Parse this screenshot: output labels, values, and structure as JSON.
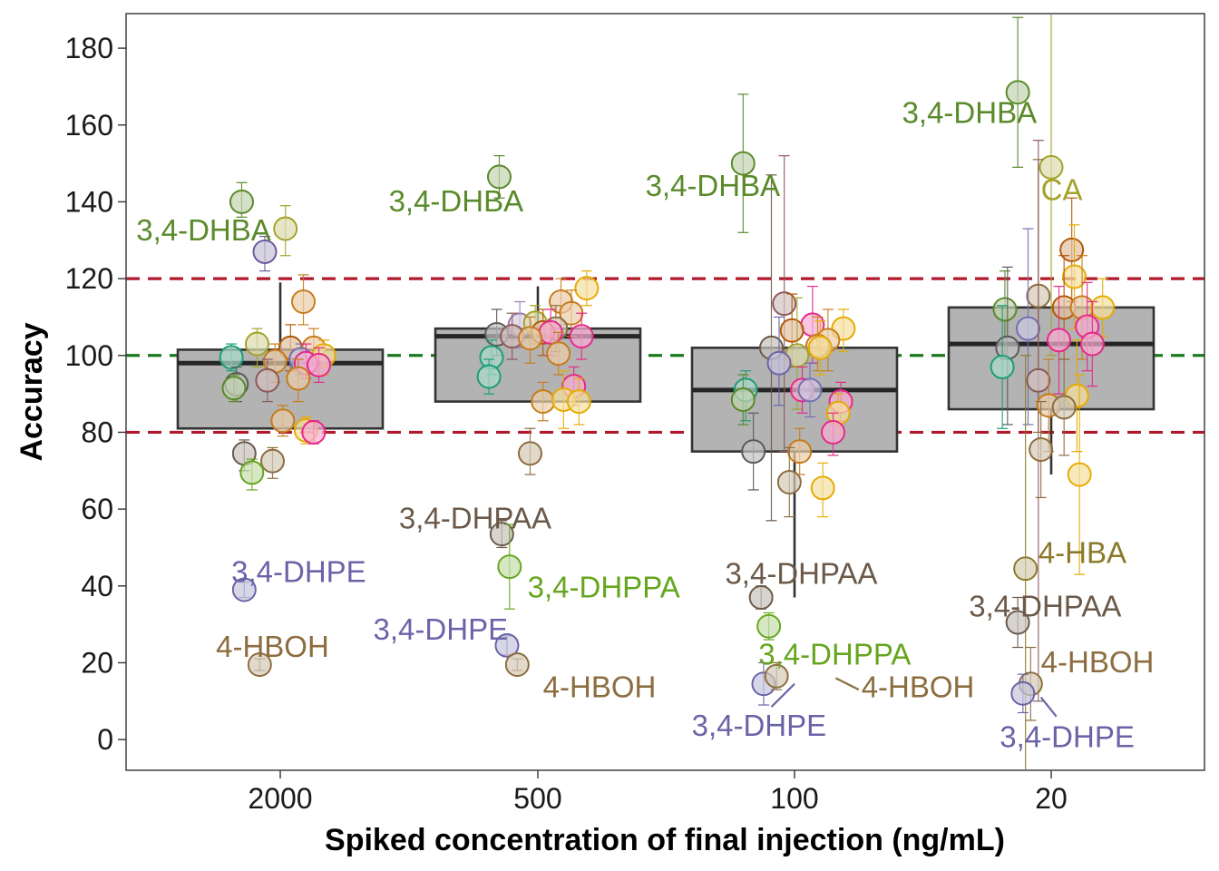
{
  "chart_data": {
    "type": "box",
    "xlabel": "Spiked concentration of final injection (ng/mL)",
    "ylabel": "Accuracy",
    "categories": [
      "2000",
      "500",
      "100",
      "20"
    ],
    "ylim": [
      -8,
      189
    ],
    "yticks": [
      0,
      20,
      40,
      60,
      80,
      100,
      120,
      140,
      160,
      180
    ],
    "reference_lines": [
      {
        "y": 120,
        "color": "#b2182b",
        "style": "dashed"
      },
      {
        "y": 100,
        "color": "#1b7a1b",
        "style": "dashed"
      },
      {
        "y": 80,
        "color": "#b2182b",
        "style": "dashed"
      }
    ],
    "boxes": [
      {
        "category": "2000",
        "whisker_low": 81,
        "q1": 81,
        "median": 98,
        "q3": 101.5,
        "whisker_high": 119
      },
      {
        "category": "500",
        "whisker_low": 88,
        "q1": 88,
        "median": 105,
        "q3": 107,
        "whisker_high": 118
      },
      {
        "category": "100",
        "whisker_low": 37,
        "q1": 75,
        "median": 91,
        "q3": 102,
        "whisker_high": 102
      },
      {
        "category": "20",
        "whisker_low": 69,
        "q1": 86,
        "median": 103,
        "q3": 112.5,
        "whisker_high": 112.5
      }
    ],
    "points": [
      {
        "c": 0,
        "dx": -0.15,
        "y": 140,
        "lo": 136,
        "hi": 145,
        "col": "#5a8a2a"
      },
      {
        "c": 0,
        "dx": 0.02,
        "y": 133,
        "lo": 126,
        "hi": 139,
        "col": "#a3a32a"
      },
      {
        "c": 0,
        "dx": -0.06,
        "y": 127,
        "lo": 122,
        "hi": 131,
        "col": "#6b5a9c"
      },
      {
        "c": 0,
        "dx": 0.09,
        "y": 114,
        "lo": 108,
        "hi": 121,
        "col": "#c77c1a"
      },
      {
        "c": 0,
        "dx": -0.19,
        "y": 99.5,
        "lo": 96,
        "hi": 103,
        "col": "#1b9e77"
      },
      {
        "c": 0,
        "dx": -0.09,
        "y": 103,
        "lo": 97,
        "hi": 107,
        "col": "#a3a32a"
      },
      {
        "c": 0,
        "dx": 0.04,
        "y": 102,
        "lo": 96,
        "hi": 108,
        "col": "#b35806"
      },
      {
        "c": 0,
        "dx": 0.13,
        "y": 102,
        "lo": 96,
        "hi": 107,
        "col": "#c77c1a"
      },
      {
        "c": 0,
        "dx": 0.17,
        "y": 100,
        "lo": 95,
        "hi": 104,
        "col": "#e6ab02"
      },
      {
        "c": 0,
        "dx": 0.08,
        "y": 99,
        "lo": 95,
        "hi": 103,
        "col": "#7570b3"
      },
      {
        "c": 0,
        "dx": -0.02,
        "y": 98.5,
        "lo": 93,
        "hi": 103,
        "col": "#c77c1a"
      },
      {
        "c": 0,
        "dx": 0.1,
        "y": 98,
        "lo": 94,
        "hi": 103,
        "col": "#e7298a"
      },
      {
        "c": 0,
        "dx": 0.15,
        "y": 97.5,
        "lo": 93,
        "hi": 102,
        "col": "#e7298a"
      },
      {
        "c": 0,
        "dx": -0.05,
        "y": 93.5,
        "lo": 88,
        "hi": 99,
        "col": "#8c5a5a"
      },
      {
        "c": 0,
        "dx": -0.17,
        "y": 92.5,
        "lo": 88,
        "hi": 97,
        "col": "#5a5a5a"
      },
      {
        "c": 0,
        "dx": -0.18,
        "y": 91.5,
        "lo": 88,
        "hi": 95,
        "col": "#5a8a2a"
      },
      {
        "c": 0,
        "dx": 0.07,
        "y": 94,
        "lo": 88,
        "hi": 99,
        "col": "#c77c1a"
      },
      {
        "c": 0,
        "dx": 0.01,
        "y": 83,
        "lo": 79,
        "hi": 87,
        "col": "#c77c1a"
      },
      {
        "c": 0,
        "dx": 0.1,
        "y": 80.5,
        "lo": 77,
        "hi": 84,
        "col": "#e6ab02"
      },
      {
        "c": 0,
        "dx": 0.13,
        "y": 80,
        "lo": 77,
        "hi": 83,
        "col": "#e7298a"
      },
      {
        "c": 0,
        "dx": -0.14,
        "y": 74.5,
        "lo": 70,
        "hi": 78,
        "col": "#6b5a4a"
      },
      {
        "c": 0,
        "dx": -0.03,
        "y": 72.5,
        "lo": 68,
        "hi": 76,
        "col": "#8c6d3f"
      },
      {
        "c": 0,
        "dx": -0.11,
        "y": 69.5,
        "lo": 65,
        "hi": 73,
        "col": "#66a61e"
      },
      {
        "c": 0,
        "dx": -0.14,
        "y": 39,
        "lo": 37,
        "hi": 41,
        "col": "#6b63a8"
      },
      {
        "c": 0,
        "dx": -0.08,
        "y": 19.5,
        "lo": 18,
        "hi": 21,
        "col": "#8c6d3f"
      },
      {
        "c": 1,
        "dx": -0.15,
        "y": 146.5,
        "lo": 141,
        "hi": 152,
        "col": "#5a8a2a"
      },
      {
        "c": 1,
        "dx": 0.19,
        "y": 117.5,
        "lo": 113,
        "hi": 122,
        "col": "#e6ab02"
      },
      {
        "c": 1,
        "dx": 0.09,
        "y": 114,
        "lo": 108,
        "hi": 120,
        "col": "#c77c1a"
      },
      {
        "c": 1,
        "dx": 0.13,
        "y": 111,
        "lo": 105,
        "hi": 117,
        "col": "#c77c1a"
      },
      {
        "c": 1,
        "dx": -0.07,
        "y": 108,
        "lo": 102,
        "hi": 114,
        "col": "#9b7fb0"
      },
      {
        "c": 1,
        "dx": -0.01,
        "y": 108.5,
        "lo": 103,
        "hi": 113,
        "col": "#a3a32a"
      },
      {
        "c": 1,
        "dx": 0.07,
        "y": 107,
        "lo": 101,
        "hi": 113,
        "col": "#8c6d3f"
      },
      {
        "c": 1,
        "dx": -0.16,
        "y": 105.5,
        "lo": 100,
        "hi": 112,
        "col": "#5a5a5a"
      },
      {
        "c": 1,
        "dx": 0.02,
        "y": 106,
        "lo": 100,
        "hi": 112,
        "col": "#b35806"
      },
      {
        "c": 1,
        "dx": 0.05,
        "y": 106,
        "lo": 100,
        "hi": 112,
        "col": "#e7298a"
      },
      {
        "c": 1,
        "dx": -0.1,
        "y": 105,
        "lo": 99,
        "hi": 111,
        "col": "#8c5a5a"
      },
      {
        "c": 1,
        "dx": -0.03,
        "y": 104.5,
        "lo": 98,
        "hi": 110,
        "col": "#c77c1a"
      },
      {
        "c": 1,
        "dx": 0.17,
        "y": 105,
        "lo": 99,
        "hi": 111,
        "col": "#e7298a"
      },
      {
        "c": 1,
        "dx": 0.08,
        "y": 100.5,
        "lo": 95,
        "hi": 106,
        "col": "#c77c1a"
      },
      {
        "c": 1,
        "dx": -0.18,
        "y": 99.5,
        "lo": 95,
        "hi": 104,
        "col": "#1b9e77"
      },
      {
        "c": 1,
        "dx": -0.19,
        "y": 94.5,
        "lo": 90,
        "hi": 99,
        "col": "#1b9e77"
      },
      {
        "c": 1,
        "dx": 0.14,
        "y": 92,
        "lo": 87,
        "hi": 97,
        "col": "#e7298a"
      },
      {
        "c": 1,
        "dx": 0.02,
        "y": 88,
        "lo": 83,
        "hi": 93,
        "col": "#c77c1a"
      },
      {
        "c": 1,
        "dx": 0.1,
        "y": 88.5,
        "lo": 81,
        "hi": 96,
        "col": "#e6ab02"
      },
      {
        "c": 1,
        "dx": 0.16,
        "y": 88,
        "lo": 82,
        "hi": 94,
        "col": "#e6ab02"
      },
      {
        "c": 1,
        "dx": -0.03,
        "y": 74.5,
        "lo": 69,
        "hi": 81,
        "col": "#8c6d3f"
      },
      {
        "c": 1,
        "dx": -0.14,
        "y": 53.5,
        "lo": 50,
        "hi": 57,
        "col": "#6b5a4a"
      },
      {
        "c": 1,
        "dx": -0.11,
        "y": 45,
        "lo": 34,
        "hi": 56,
        "col": "#66a61e"
      },
      {
        "c": 1,
        "dx": -0.12,
        "y": 24.5,
        "lo": 22,
        "hi": 27,
        "col": "#6b63a8"
      },
      {
        "c": 1,
        "dx": -0.08,
        "y": 19.5,
        "lo": 18,
        "hi": 21,
        "col": "#8c6d3f"
      },
      {
        "c": 2,
        "dx": -0.2,
        "y": 150,
        "lo": 132,
        "hi": 168,
        "col": "#5a8a2a"
      },
      {
        "c": 2,
        "dx": -0.04,
        "y": 113.5,
        "lo": 75,
        "hi": 152,
        "col": "#8c5a5a"
      },
      {
        "c": 2,
        "dx": 0.07,
        "y": 108,
        "lo": 98,
        "hi": 118,
        "col": "#e7298a"
      },
      {
        "c": 2,
        "dx": 0.19,
        "y": 107,
        "lo": 101,
        "hi": 112,
        "col": "#e6ab02"
      },
      {
        "c": 2,
        "dx": -0.01,
        "y": 106.5,
        "lo": 97,
        "hi": 116,
        "col": "#b35806"
      },
      {
        "c": 2,
        "dx": 0.13,
        "y": 104,
        "lo": 96,
        "hi": 112,
        "col": "#c77c1a"
      },
      {
        "c": 2,
        "dx": -0.09,
        "y": 102,
        "lo": 57,
        "hi": 147,
        "col": "#6b5a4a"
      },
      {
        "c": 2,
        "dx": 0.09,
        "y": 102.5,
        "lo": 96,
        "hi": 110,
        "col": "#c77c1a"
      },
      {
        "c": 2,
        "dx": 0.1,
        "y": 102,
        "lo": 95,
        "hi": 109,
        "col": "#e6ab02"
      },
      {
        "c": 2,
        "dx": 0.01,
        "y": 100,
        "lo": 86,
        "hi": 115,
        "col": "#a3a32a"
      },
      {
        "c": 2,
        "dx": -0.06,
        "y": 98,
        "lo": 87,
        "hi": 110,
        "col": "#6b63a8"
      },
      {
        "c": 2,
        "dx": 0.03,
        "y": 91,
        "lo": 85,
        "hi": 97,
        "col": "#e7298a"
      },
      {
        "c": 2,
        "dx": 0.06,
        "y": 91,
        "lo": 84,
        "hi": 98,
        "col": "#7570b3"
      },
      {
        "c": 2,
        "dx": -0.19,
        "y": 91,
        "lo": 83,
        "hi": 96,
        "col": "#1b9e77"
      },
      {
        "c": 2,
        "dx": -0.2,
        "y": 88.5,
        "lo": 82,
        "hi": 95,
        "col": "#5a8a2a"
      },
      {
        "c": 2,
        "dx": 0.18,
        "y": 88,
        "lo": 83,
        "hi": 93,
        "col": "#e7298a"
      },
      {
        "c": 2,
        "dx": 0.17,
        "y": 85,
        "lo": 80,
        "hi": 90,
        "col": "#e6ab02"
      },
      {
        "c": 2,
        "dx": 0.15,
        "y": 80,
        "lo": 74,
        "hi": 85,
        "col": "#e7298a"
      },
      {
        "c": 2,
        "dx": -0.16,
        "y": 75,
        "lo": 65,
        "hi": 85,
        "col": "#5a5a5a"
      },
      {
        "c": 2,
        "dx": 0.02,
        "y": 75,
        "lo": 69,
        "hi": 81,
        "col": "#c77c1a"
      },
      {
        "c": 2,
        "dx": -0.02,
        "y": 67,
        "lo": 58,
        "hi": 76,
        "col": "#8c6d3f"
      },
      {
        "c": 2,
        "dx": 0.11,
        "y": 65.5,
        "lo": 58,
        "hi": 72,
        "col": "#e6ab02"
      },
      {
        "c": 2,
        "dx": -0.13,
        "y": 37,
        "lo": 34,
        "hi": 40,
        "col": "#6b5a4a"
      },
      {
        "c": 2,
        "dx": -0.1,
        "y": 29.5,
        "lo": 26,
        "hi": 33,
        "col": "#66a61e"
      },
      {
        "c": 2,
        "dx": -0.12,
        "y": 14.5,
        "lo": 9,
        "hi": 20,
        "col": "#6b63a8"
      },
      {
        "c": 2,
        "dx": -0.07,
        "y": 16.5,
        "lo": 13,
        "hi": 20,
        "col": "#8c6d3f"
      },
      {
        "c": 3,
        "dx": -0.13,
        "y": 168.5,
        "lo": 149,
        "hi": 188,
        "col": "#5a8a2a"
      },
      {
        "c": 3,
        "dx": 0.0,
        "y": 149,
        "lo": 100,
        "hi": 200,
        "col": "#a3a32a"
      },
      {
        "c": 3,
        "dx": 0.08,
        "y": 127.5,
        "lo": 114,
        "hi": 141,
        "col": "#b35806"
      },
      {
        "c": 3,
        "dx": 0.09,
        "y": 120.5,
        "lo": 107,
        "hi": 134,
        "col": "#e6ab02"
      },
      {
        "c": 3,
        "dx": -0.05,
        "y": 115.5,
        "lo": 80,
        "hi": 151,
        "col": "#8c6d3f"
      },
      {
        "c": 3,
        "dx": 0.05,
        "y": 112.5,
        "lo": 99,
        "hi": 126,
        "col": "#b35806"
      },
      {
        "c": 3,
        "dx": 0.12,
        "y": 112.5,
        "lo": 99,
        "hi": 126,
        "col": "#c77c1a"
      },
      {
        "c": 3,
        "dx": 0.2,
        "y": 112.5,
        "lo": 105,
        "hi": 120,
        "col": "#e6ab02"
      },
      {
        "c": 3,
        "dx": -0.18,
        "y": 112,
        "lo": 99,
        "hi": 122,
        "col": "#5a8a2a"
      },
      {
        "c": 3,
        "dx": -0.09,
        "y": 107,
        "lo": 82,
        "hi": 133,
        "col": "#7570b3"
      },
      {
        "c": 3,
        "dx": 0.14,
        "y": 107.5,
        "lo": 96,
        "hi": 119,
        "col": "#e7298a"
      },
      {
        "c": 3,
        "dx": 0.03,
        "y": 104,
        "lo": 90,
        "hi": 118,
        "col": "#e7298a"
      },
      {
        "c": 3,
        "dx": 0.16,
        "y": 103,
        "lo": 92,
        "hi": 114,
        "col": "#e7298a"
      },
      {
        "c": 3,
        "dx": -0.17,
        "y": 102,
        "lo": 82,
        "hi": 123,
        "col": "#5a5a5a"
      },
      {
        "c": 3,
        "dx": -0.19,
        "y": 97,
        "lo": 81,
        "hi": 113,
        "col": "#1b9e77"
      },
      {
        "c": 3,
        "dx": -0.05,
        "y": 93.5,
        "lo": 10,
        "hi": 156,
        "col": "#8c5a5a"
      },
      {
        "c": 3,
        "dx": 0.1,
        "y": 89.5,
        "lo": 75,
        "hi": 104,
        "col": "#e6ab02"
      },
      {
        "c": 3,
        "dx": -0.01,
        "y": 87,
        "lo": 75,
        "hi": 99,
        "col": "#c77c1a"
      },
      {
        "c": 3,
        "dx": 0.05,
        "y": 86.5,
        "lo": 74,
        "hi": 99,
        "col": "#8c6d3f"
      },
      {
        "c": 3,
        "dx": -0.04,
        "y": 75.5,
        "lo": 63,
        "hi": 88,
        "col": "#8c6d3f"
      },
      {
        "c": 3,
        "dx": 0.11,
        "y": 69,
        "lo": 43,
        "hi": 95,
        "col": "#e6ab02"
      },
      {
        "c": 3,
        "dx": -0.1,
        "y": 44.5,
        "lo": -10,
        "hi": 100,
        "col": "#8a7a2a"
      },
      {
        "c": 3,
        "dx": -0.13,
        "y": 30.5,
        "lo": 24,
        "hi": 37,
        "col": "#6b5a4a"
      },
      {
        "c": 3,
        "dx": -0.08,
        "y": 14.5,
        "lo": 5,
        "hi": 24,
        "col": "#8c6d3f"
      },
      {
        "c": 3,
        "dx": -0.11,
        "y": 12,
        "lo": 7,
        "hi": 17,
        "col": "#6b63a8"
      }
    ],
    "annotations": [
      {
        "text": "3,4-DHBA",
        "c": 0,
        "dx": -0.56,
        "y": 130,
        "color": "#5a8a2a"
      },
      {
        "text": "3,4-DHPE",
        "c": 0,
        "dx": -0.19,
        "y": 41,
        "color": "#6b63a8"
      },
      {
        "text": "4-HBOH",
        "c": 0,
        "dx": -0.25,
        "y": 21.5,
        "color": "#8c6d3f"
      },
      {
        "text": "3,4-DHBA",
        "c": 1,
        "dx": -0.58,
        "y": 137.5,
        "color": "#5a8a2a"
      },
      {
        "text": "3,4-DHPAA",
        "c": 1,
        "dx": -0.54,
        "y": 55,
        "color": "#6b5a4a"
      },
      {
        "text": "3,4-DHPPA",
        "c": 1,
        "dx": -0.04,
        "y": 37,
        "color": "#66a61e"
      },
      {
        "text": "3,4-DHPE",
        "c": 1,
        "dx": -0.64,
        "y": 26,
        "color": "#6b63a8"
      },
      {
        "text": "4-HBOH",
        "c": 1,
        "dx": 0.02,
        "y": 11,
        "color": "#8c6d3f"
      },
      {
        "text": "3,4-DHBA",
        "c": 2,
        "dx": -0.58,
        "y": 141.5,
        "color": "#5a8a2a"
      },
      {
        "text": "3,4-DHPAA",
        "c": 2,
        "dx": -0.27,
        "y": 40.5,
        "color": "#6b5a4a"
      },
      {
        "text": "3,4-DHPPA",
        "c": 2,
        "dx": -0.14,
        "y": 19.5,
        "color": "#66a61e"
      },
      {
        "text": "3,4-DHPE",
        "c": 2,
        "dx": -0.4,
        "y": 1,
        "color": "#6b63a8"
      },
      {
        "text": "4-HBOH",
        "c": 2,
        "dx": 0.26,
        "y": 11,
        "color": "#8c6d3f"
      },
      {
        "text": "3,4-DHBA",
        "c": 3,
        "dx": -0.58,
        "y": 160.5,
        "color": "#5a8a2a"
      },
      {
        "text": "CA",
        "c": 3,
        "dx": -0.04,
        "y": 140.5,
        "color": "#a3a32a"
      },
      {
        "text": "4-HBA",
        "c": 3,
        "dx": -0.05,
        "y": 46,
        "color": "#8a7a2a"
      },
      {
        "text": "3,4-DHPAA",
        "c": 3,
        "dx": -0.32,
        "y": 32,
        "color": "#6b5a4a"
      },
      {
        "text": "4-HBOH",
        "c": 3,
        "dx": -0.04,
        "y": 17.5,
        "color": "#8c6d3f"
      },
      {
        "text": "3,4-DHPE",
        "c": 3,
        "dx": -0.2,
        "y": -2,
        "color": "#6b63a8"
      }
    ],
    "leader_lines": [
      {
        "c": 2,
        "dx1": -0.09,
        "y1": 8.5,
        "dx2": 0.0,
        "y2": 14.5,
        "color": "#6b63a8"
      },
      {
        "c": 2,
        "dx1": 0.16,
        "y1": 16,
        "dx2": 0.25,
        "y2": 13,
        "color": "#8c6d3f"
      },
      {
        "c": 3,
        "dx1": -0.04,
        "y1": 11,
        "dx2": 0.02,
        "y2": 6,
        "color": "#6b63a8"
      }
    ],
    "grid": false,
    "legend": "none"
  }
}
